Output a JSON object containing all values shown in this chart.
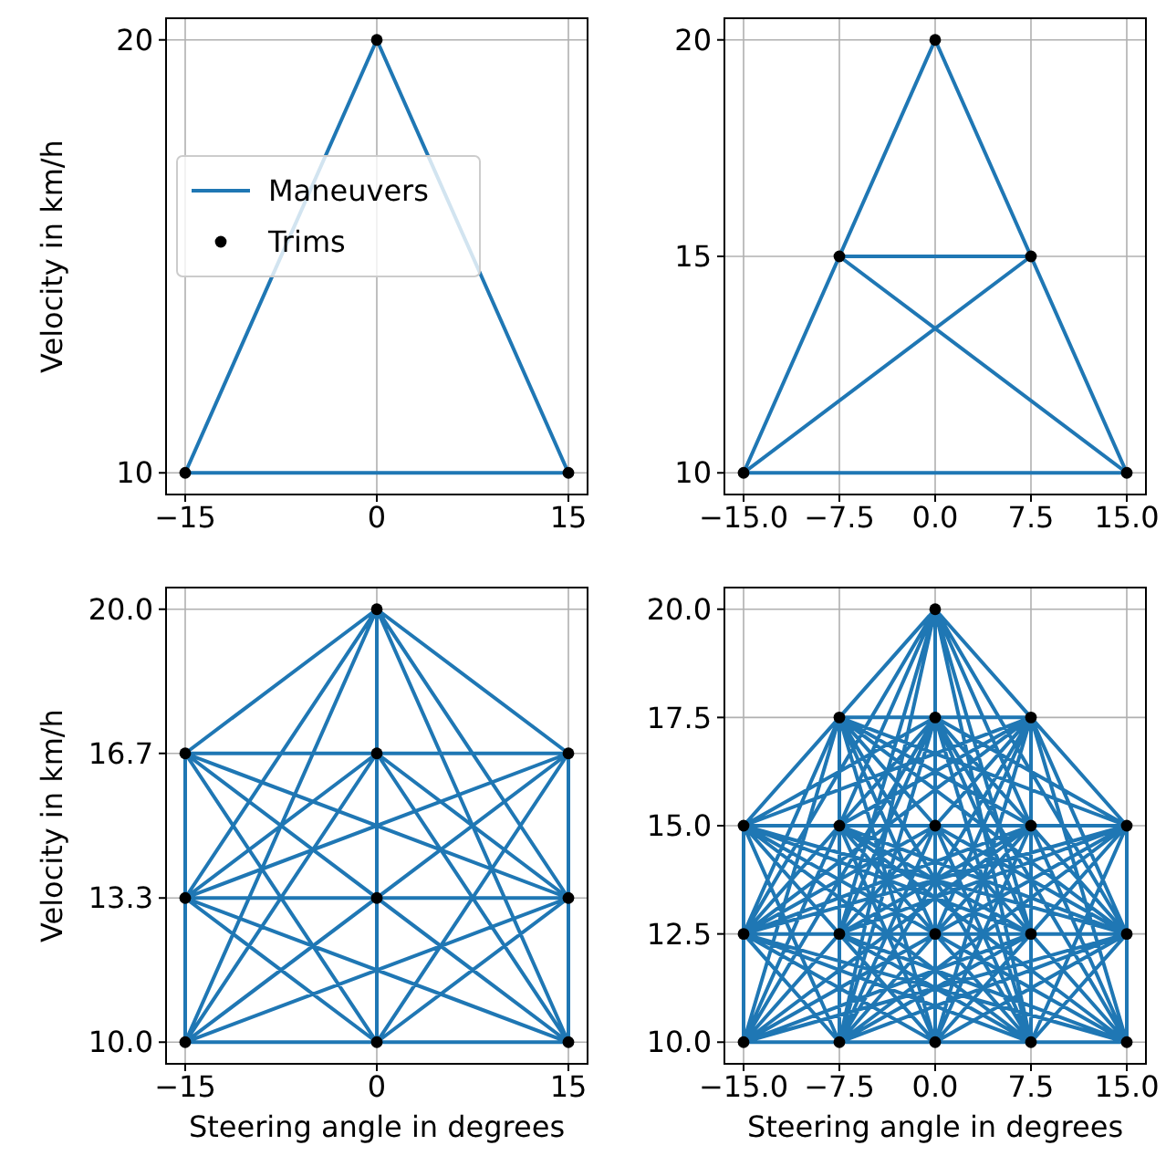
{
  "chart_data": [
    {
      "type": "line",
      "ylabel": "Velocity in km/h",
      "xlim": [
        -16.5,
        16.5
      ],
      "ylim": [
        9.5,
        20.5
      ],
      "xticks": [
        {
          "value": -15,
          "label": "−15"
        },
        0,
        15
      ],
      "yticks": [
        10,
        20
      ],
      "grid": true,
      "legend": "center left",
      "series": [
        {
          "name": "Maneuvers",
          "color": "#1f77b4",
          "x": [
            -15,
            0,
            15,
            null,
            15,
            -15
          ],
          "values": [
            10,
            20,
            10,
            null,
            10,
            10
          ]
        },
        {
          "name": "Trims",
          "type": "scatter",
          "marker": "circle",
          "color": "#000000",
          "x": [
            -15,
            0,
            15
          ],
          "values": [
            10,
            20,
            10
          ]
        }
      ]
    },
    {
      "type": "line",
      "xlim": [
        -16.5,
        16.5
      ],
      "ylim": [
        9.5,
        20.5
      ],
      "xticks": [
        {
          "value": -15,
          "label": "−15.0"
        },
        {
          "value": -7.5,
          "label": "−7.5"
        },
        {
          "value": 0,
          "label": "0.0"
        },
        7.5,
        {
          "value": 15,
          "label": "15.0"
        }
      ],
      "yticks": [
        10,
        15,
        20
      ],
      "grid": true,
      "series": [
        {
          "color": "#1f77b4",
          "x": [
            0,
            -7.5,
            7.5,
            15,
            -15,
            null,
            -15,
            0,
            7.5,
            -15,
            -7.5,
            15,
            null,
            15,
            0
          ],
          "values": [
            20,
            15,
            15,
            10,
            10,
            null,
            10,
            20,
            15,
            10,
            15,
            10,
            null,
            10,
            20
          ]
        },
        {
          "type": "scatter",
          "marker": "circle",
          "color": "#000000",
          "x": [
            -15,
            15,
            0,
            -7.5,
            7.5
          ],
          "values": [
            10,
            10,
            20,
            15,
            15
          ]
        }
      ]
    },
    {
      "type": "line",
      "xlabel": "Steering angle in degrees",
      "ylabel": "Velocity in km/h",
      "xlim": [
        -16.5,
        16.5
      ],
      "ylim": [
        9.5,
        20.5
      ],
      "xticks": [
        {
          "value": -15,
          "label": "−15"
        },
        0,
        15
      ],
      "yticks": [
        {
          "value": 10,
          "label": "10.0"
        },
        {
          "value": 13.33,
          "label": "13.3"
        },
        {
          "value": 16.67,
          "label": "16.7"
        },
        {
          "value": 20,
          "label": "20.0"
        }
      ],
      "grid": true,
      "series": [
        {
          "color": "#1f77b4",
          "x": [
            0,
            -15,
            15,
            0,
            0,
            15,
            -15,
            -15,
            15,
            0,
            null,
            -15,
            0,
            0,
            15,
            15,
            -15,
            0,
            0,
            -15,
            15,
            null,
            0,
            15,
            -15,
            -15,
            0,
            0,
            15,
            15,
            0,
            -15,
            null,
            15,
            -15,
            0,
            0,
            -15,
            15,
            0,
            -15,
            15,
            0,
            null,
            -15,
            0,
            15,
            15,
            0,
            -15,
            -15,
            0,
            0,
            15
          ],
          "values": [
            20,
            16.67,
            10,
            16.67,
            10,
            16.67,
            10,
            13.33,
            13.33,
            13.33,
            null,
            16.67,
            16.67,
            20,
            16.67,
            10,
            13.33,
            10,
            13.33,
            10,
            13.33,
            null,
            16.67,
            16.67,
            16.67,
            13.33,
            20,
            13.33,
            10,
            13.33,
            10,
            10,
            null,
            16.67,
            13.33,
            16.67,
            13.33,
            16.67,
            13.33,
            20,
            10,
            10,
            10,
            null,
            13.33,
            13.33,
            16.67,
            13.33,
            16.67,
            10,
            16.67,
            10,
            20,
            10
          ]
        },
        {
          "type": "scatter",
          "marker": "circle",
          "color": "#000000",
          "x": [
            0,
            -15,
            0,
            15,
            -15,
            0,
            15,
            -15,
            0,
            15
          ],
          "values": [
            20,
            16.67,
            16.67,
            16.67,
            13.33,
            13.33,
            13.33,
            10,
            10,
            10
          ]
        }
      ]
    },
    {
      "type": "line",
      "xlabel": "Steering angle in degrees",
      "xlim": [
        -16.5,
        16.5
      ],
      "ylim": [
        9.5,
        20.5
      ],
      "xticks": [
        {
          "value": -15,
          "label": "−15.0"
        },
        {
          "value": -7.5,
          "label": "−7.5"
        },
        {
          "value": 0,
          "label": "0.0"
        },
        7.5,
        {
          "value": 15,
          "label": "15.0"
        }
      ],
      "yticks": [
        {
          "value": 10,
          "label": "10.0"
        },
        12.5,
        {
          "value": 15,
          "label": "15.0"
        },
        17.5,
        {
          "value": 20,
          "label": "20.0"
        }
      ],
      "grid": true,
      "series": [
        {
          "color": "#1f77b4",
          "x": [
            0,
            -7.5,
            0,
            7.5,
            -15,
            -7.5,
            0,
            7.5,
            15,
            -15,
            -7.5,
            0,
            7.5,
            15,
            -15,
            -7.5,
            0,
            7.5,
            15,
            null,
            0,
            0,
            -15,
            0,
            15,
            -7.5,
            7.5,
            -15,
            0,
            15,
            -7.5,
            7.5,
            -7.5,
            7.5,
            -15,
            0,
            15,
            -7.5,
            7.5,
            null,
            0,
            7.5,
            0,
            -15,
            7.5,
            -7.5,
            15,
            0,
            -7.5,
            15,
            0,
            -15,
            7.5,
            -7.5,
            -15,
            7.5,
            -7.5,
            15,
            0,
            null,
            0,
            -15,
            15,
            7.5,
            0,
            -7.5,
            -7.5,
            -15,
            15,
            7.5,
            0,
            0,
            -7.5,
            -15,
            15,
            7.5,
            7.5,
            0,
            -7.5,
            null,
            0,
            -7.5,
            -7.5,
            -7.5,
            -7.5,
            0,
            0,
            0,
            0,
            7.5,
            7.5,
            7.5,
            7.5,
            15,
            15,
            15,
            -15,
            -15,
            -15,
            null,
            0,
            0,
            7.5,
            15,
            -7.5,
            0,
            7.5,
            -15,
            -7.5,
            0,
            7.5,
            -15,
            -7.5,
            0,
            15,
            -15,
            -7.5,
            7.5,
            15,
            null,
            0,
            7.5,
            -15,
            0,
            -15,
            0,
            -15,
            0,
            15,
            0,
            15,
            -7.5,
            15,
            -7.5,
            7.5,
            -7.5,
            7.5,
            -7.5,
            7.5,
            null,
            0,
            15,
            0,
            -7.5,
            15,
            0,
            -7.5,
            15,
            7.5,
            -7.5,
            -15,
            7.5,
            -7.5,
            -15,
            7.5,
            0,
            -15,
            7.5,
            0,
            null,
            0,
            -15,
            15,
            15,
            7.5,
            7.5,
            0,
            0,
            -7.5,
            -7.5,
            -15,
            -15,
            15,
            7.5,
            7.5,
            0,
            0,
            -7.5,
            -7.5,
            null,
            -7.5,
            0,
            0,
            null,
            7.5,
            0,
            15,
            null,
            -15,
            0,
            -7.5,
            null,
            0,
            0,
            7.5,
            null,
            15,
            0
          ],
          "values": [
            20,
            17.5,
            17.5,
            17.5,
            15,
            15,
            15,
            15,
            15,
            12.5,
            12.5,
            12.5,
            12.5,
            12.5,
            10,
            10,
            10,
            10,
            10,
            null,
            20,
            17.5,
            15,
            15,
            15,
            12.5,
            12.5,
            10,
            10,
            10,
            17.5,
            17.5,
            15,
            15,
            12.5,
            12.5,
            12.5,
            10,
            10,
            null,
            20,
            17.5,
            15,
            12.5,
            12.5,
            10,
            10,
            17.5,
            15,
            15,
            12.5,
            10,
            10,
            17.5,
            15,
            15,
            12.5,
            12.5,
            10,
            null,
            20,
            15,
            15,
            12.5,
            10,
            17.5,
            15,
            12.5,
            12.5,
            10,
            17.5,
            15,
            12.5,
            10,
            10,
            17.5,
            15,
            12.5,
            10,
            null,
            20,
            15,
            12.5,
            10,
            17.5,
            15,
            12.5,
            10,
            17.5,
            15,
            12.5,
            10,
            17.5,
            15,
            12.5,
            10,
            15,
            12.5,
            10,
            null,
            20,
            15,
            12.5,
            10,
            15,
            12.5,
            10,
            15,
            12.5,
            10,
            17.5,
            12.5,
            10,
            17.5,
            15,
            10,
            17.5,
            15,
            12.5,
            null,
            20,
            15,
            10,
            17.5,
            12.5,
            10,
            15,
            12.5,
            10,
            15,
            12.5,
            17.5,
            15,
            10,
            17.5,
            12.5,
            10,
            15,
            12.5,
            null,
            20,
            15,
            10,
            15,
            12.5,
            17.5,
            12.5,
            10,
            15,
            10,
            15,
            12.5,
            17.5,
            12.5,
            10,
            15,
            10,
            17.5,
            12.5,
            null,
            20,
            12.5,
            10,
            15,
            10,
            15,
            10,
            15,
            10,
            15,
            10,
            15,
            12.5,
            17.5,
            12.5,
            17.5,
            12.5,
            17.5,
            12.5,
            null,
            12.5,
            20,
            12.5,
            null,
            12.5,
            20,
            12.5,
            null,
            10,
            20,
            10,
            null,
            10,
            20,
            10,
            null,
            10,
            20
          ]
        },
        {
          "type": "scatter",
          "marker": "circle",
          "color": "#000000",
          "x": [
            0,
            -7.5,
            0,
            7.5,
            -15,
            -7.5,
            0,
            7.5,
            15,
            -15,
            -7.5,
            0,
            7.5,
            15,
            -15,
            -7.5,
            0,
            7.5,
            15
          ],
          "values": [
            20,
            17.5,
            17.5,
            17.5,
            15,
            15,
            15,
            15,
            15,
            12.5,
            12.5,
            12.5,
            12.5,
            12.5,
            10,
            10,
            10,
            10,
            10
          ]
        }
      ]
    }
  ]
}
